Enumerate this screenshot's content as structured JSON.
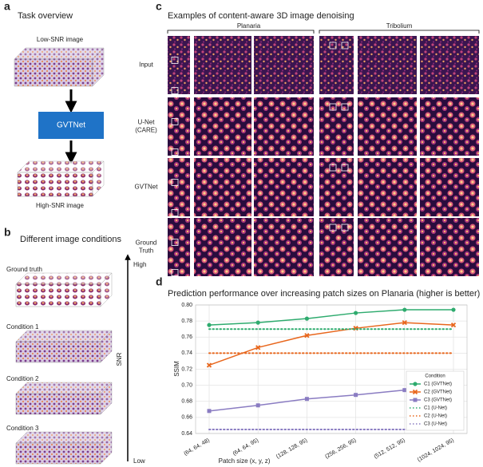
{
  "panels": {
    "a": {
      "label": "a",
      "title": "Task overview",
      "input": "Low-SNR image",
      "model": "GVTNet",
      "output": "High-SNR image"
    },
    "b": {
      "label": "b",
      "title": "Different image conditions",
      "conditions": [
        "Ground truth",
        "Condition 1",
        "Condition 2",
        "Condition 3"
      ],
      "axis": "SNR",
      "high": "High",
      "low": "Low"
    },
    "c": {
      "label": "c",
      "title": "Examples of content-aware 3D image denoising",
      "groups": [
        "Planaria",
        "Tribolium"
      ],
      "rows": [
        [
          "Input"
        ],
        [
          "U-Net",
          "(CARE)"
        ],
        [
          "GVTNet"
        ],
        [
          "Ground",
          "Truth"
        ]
      ]
    },
    "d": {
      "label": "d"
    }
  },
  "chart_data": {
    "type": "line",
    "title": "Prediction performance over increasing patch sizes on Planaria (higher is better)",
    "x_label": "Patch size (x, y, z)",
    "y_label": "SSIM",
    "categories": [
      "(64, 64, 48)",
      "(64, 64, 95)",
      "(128, 128, 95)",
      "(256, 256, 95)",
      "(512, 512, 95)",
      "(1024, 1024, 95)"
    ],
    "ylim": [
      0.64,
      0.8
    ],
    "yticks": [
      {
        "value": 0.64,
        "label": "0.64"
      },
      {
        "value": 0.66,
        "label": "0.66"
      },
      {
        "value": 0.68,
        "label": "0.68"
      },
      {
        "value": 0.7,
        "label": "0.70"
      },
      {
        "value": 0.72,
        "label": "0.72"
      },
      {
        "value": 0.74,
        "label": "0.74"
      },
      {
        "value": 0.76,
        "label": "0.76"
      },
      {
        "value": 0.78,
        "label": "0.78"
      },
      {
        "value": 0.8,
        "label": "0.80"
      }
    ],
    "grid": true,
    "legend_title": "Condition",
    "legend": "lower right",
    "series": [
      {
        "name": "C1 (GVTNet)",
        "color": "#2eab6e",
        "linestyle": "solid",
        "marker": "circle",
        "values": [
          0.775,
          0.778,
          0.783,
          0.79,
          0.794,
          0.794
        ]
      },
      {
        "name": "C2 (GVTNet)",
        "color": "#e8661c",
        "linestyle": "solid",
        "marker": "x",
        "values": [
          0.725,
          0.747,
          0.762,
          0.771,
          0.778,
          0.775
        ]
      },
      {
        "name": "C3 (GVTNet)",
        "color": "#8a7cc2",
        "linestyle": "solid",
        "marker": "square",
        "values": [
          0.668,
          0.675,
          0.683,
          0.688,
          0.694,
          0.7
        ]
      },
      {
        "name": "C1 (U-Net)",
        "color": "#2eab6e",
        "linestyle": "dotted",
        "marker": "none",
        "values": [
          0.77,
          0.77,
          0.77,
          0.77,
          0.77,
          0.77
        ]
      },
      {
        "name": "C2 (U-Net)",
        "color": "#e8661c",
        "linestyle": "dotted",
        "marker": "none",
        "values": [
          0.74,
          0.74,
          0.74,
          0.74,
          0.74,
          0.74
        ]
      },
      {
        "name": "C3 (U-Net)",
        "color": "#8a7cc2",
        "linestyle": "dotted",
        "marker": "none",
        "values": [
          0.645,
          0.645,
          0.645,
          0.645,
          0.645,
          0.645
        ]
      }
    ]
  }
}
